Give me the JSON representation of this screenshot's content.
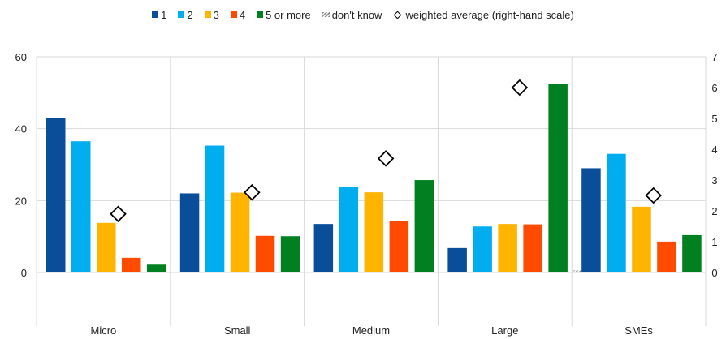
{
  "chart_data": {
    "type": "bar",
    "categories": [
      "Micro",
      "Small",
      "Medium",
      "Large",
      "SMEs"
    ],
    "series": [
      {
        "name": "1",
        "color": "#0a4d99",
        "values": [
          43,
          22,
          13.5,
          6.8,
          29
        ]
      },
      {
        "name": "2",
        "color": "#00aeef",
        "values": [
          36.5,
          35.3,
          23.8,
          12.8,
          33
        ]
      },
      {
        "name": "3",
        "color": "#ffb400",
        "values": [
          13.8,
          22.2,
          22.3,
          13.5,
          18.3
        ]
      },
      {
        "name": "4",
        "color": "#ff4b00",
        "values": [
          4.1,
          10.2,
          14.4,
          13.4,
          8.6
        ]
      },
      {
        "name": "5 or more",
        "color": "#008020",
        "values": [
          2.2,
          10.1,
          25.7,
          52.4,
          10.4
        ]
      },
      {
        "name": "don't know",
        "color": "#8a8a8a",
        "pattern": "hatched",
        "values": [
          0,
          0,
          0,
          0.6,
          0
        ]
      }
    ],
    "weighted_average": {
      "name": "weighted average (right-hand scale)",
      "values": [
        1.9,
        2.6,
        3.7,
        6.0,
        2.5
      ]
    },
    "y_left": {
      "min": 0,
      "max": 60,
      "ticks": [
        0,
        20,
        40,
        60
      ]
    },
    "y_right": {
      "min": 0,
      "max": 7,
      "ticks": [
        0,
        1,
        2,
        3,
        4,
        5,
        6,
        7
      ]
    },
    "grid": "horizontal",
    "legend_position": "top"
  }
}
